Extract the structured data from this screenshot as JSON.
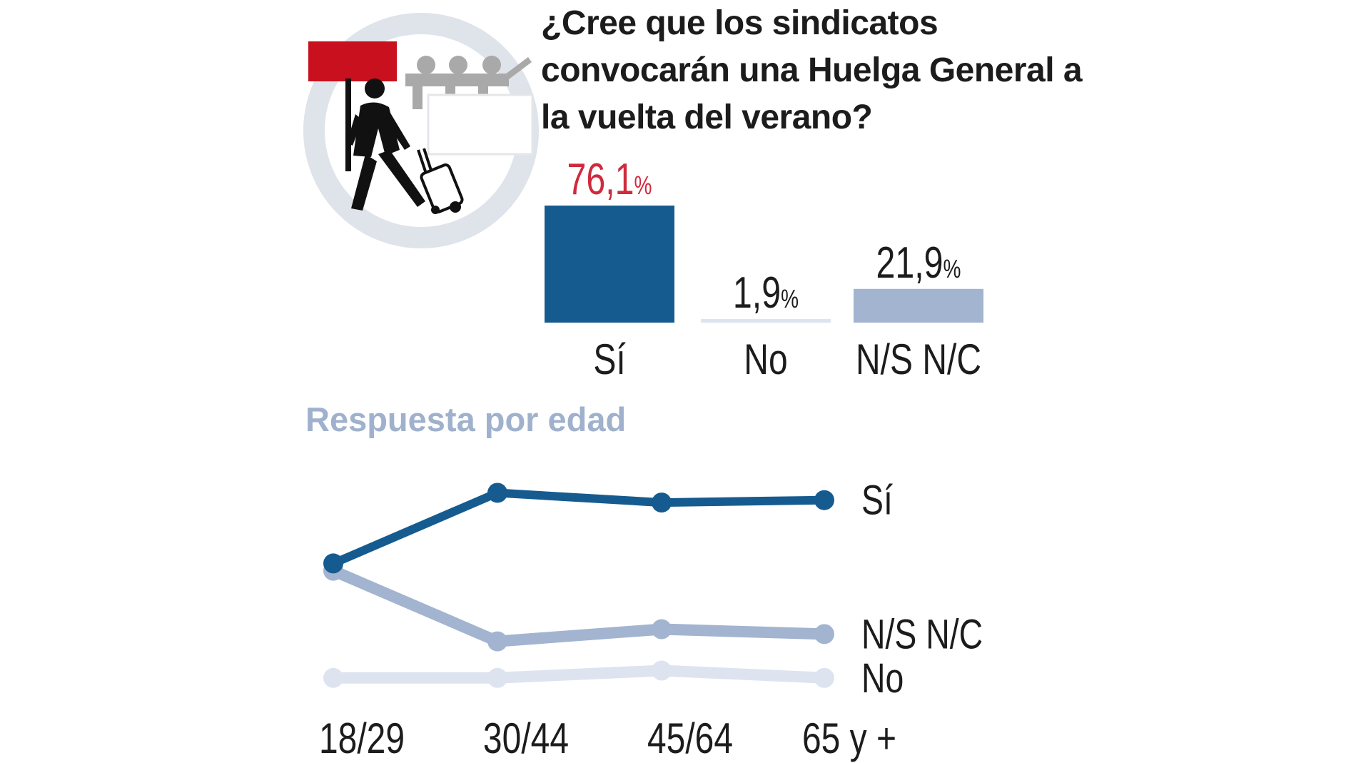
{
  "colors": {
    "si": "#165b8f",
    "no": "#dde4ef",
    "nsnc": "#a2b4d0",
    "highlight": "#cf2a3d",
    "text": "#1c1c1c",
    "subtitle": "#9fb1cc",
    "flag": "#c8101e"
  },
  "question": "¿Cree que los sindicatos convocarán una Huelga General a la vuelta del verano?",
  "age_section_title": "Respuesta por edad",
  "illustration": {
    "icon": "strike-worker-with-flag-and-suitcase-icon"
  },
  "chart_data": [
    {
      "type": "bar",
      "title": "¿Cree que los sindicatos convocarán una Huelga General a la vuelta del verano?",
      "categories": [
        "Sí",
        "No",
        "N/S  N/C"
      ],
      "values": [
        76.1,
        1.9,
        21.9
      ],
      "value_labels": [
        "76,1",
        "1,9",
        "21,9"
      ],
      "unit": "%",
      "highlight_index": 0,
      "ylim": [
        0,
        76.1
      ],
      "grid": false
    },
    {
      "type": "line",
      "title": "Respuesta por edad",
      "x": [
        "18/29",
        "30/44",
        "45/64",
        "65 y +"
      ],
      "series": [
        {
          "name": "Sí",
          "values": [
            50,
            79,
            75,
            76
          ]
        },
        {
          "name": "N/S  N/C",
          "values": [
            47,
            18,
            23,
            21
          ]
        },
        {
          "name": "No",
          "values": [
            3,
            3,
            6,
            3
          ]
        }
      ],
      "unit": "%",
      "ylim": [
        0,
        85
      ],
      "grid": false,
      "legend": "right-inline"
    }
  ]
}
